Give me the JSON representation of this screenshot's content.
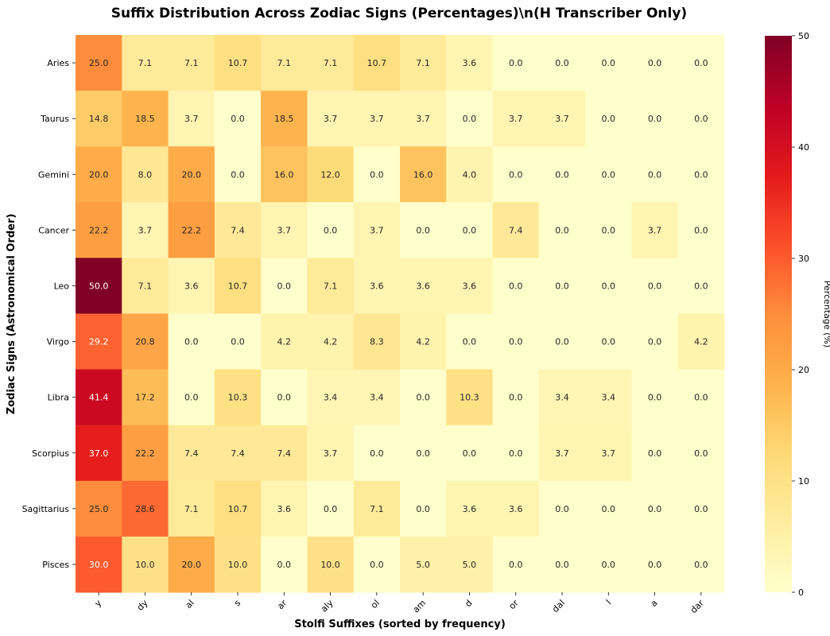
{
  "chart_data": {
    "type": "heatmap",
    "title": "Suffix Distribution Across Zodiac Signs (Percentages)\\n(H Transcriber Only)",
    "xlabel": "Stolfi Suffixes (sorted by frequency)",
    "ylabel": "Zodiac Signs (Astronomical Order)",
    "colorbar_label": "Percentage (%)",
    "colorbar_ticks": [
      0,
      10,
      20,
      30,
      40,
      50
    ],
    "vmin": 0,
    "vmax": 50,
    "colormap": "YlOrRd",
    "x_categories": [
      "y",
      "dy",
      "al",
      "s",
      "ar",
      "aly",
      "ol",
      "am",
      "d",
      "or",
      "dal",
      "l",
      "a",
      "dar"
    ],
    "y_categories": [
      "Aries",
      "Taurus",
      "Gemini",
      "Cancer",
      "Leo",
      "Virgo",
      "Libra",
      "Scorpius",
      "Sagittarius",
      "Pisces"
    ],
    "values": [
      [
        25.0,
        7.1,
        7.1,
        10.7,
        7.1,
        7.1,
        10.7,
        7.1,
        3.6,
        0.0,
        0.0,
        0.0,
        0.0,
        0.0
      ],
      [
        14.8,
        18.5,
        3.7,
        0.0,
        18.5,
        3.7,
        3.7,
        3.7,
        0.0,
        3.7,
        3.7,
        0.0,
        0.0,
        0.0
      ],
      [
        20.0,
        8.0,
        20.0,
        0.0,
        16.0,
        12.0,
        0.0,
        16.0,
        4.0,
        0.0,
        0.0,
        0.0,
        0.0,
        0.0
      ],
      [
        22.2,
        3.7,
        22.2,
        7.4,
        3.7,
        0.0,
        3.7,
        0.0,
        0.0,
        7.4,
        0.0,
        0.0,
        3.7,
        0.0
      ],
      [
        50.0,
        7.1,
        3.6,
        10.7,
        0.0,
        7.1,
        3.6,
        3.6,
        3.6,
        0.0,
        0.0,
        0.0,
        0.0,
        0.0
      ],
      [
        29.2,
        20.8,
        0.0,
        0.0,
        4.2,
        4.2,
        8.3,
        4.2,
        0.0,
        0.0,
        0.0,
        0.0,
        0.0,
        4.2
      ],
      [
        41.4,
        17.2,
        0.0,
        10.3,
        0.0,
        3.4,
        3.4,
        0.0,
        10.3,
        0.0,
        3.4,
        3.4,
        0.0,
        0.0
      ],
      [
        37.0,
        22.2,
        7.4,
        7.4,
        7.4,
        3.7,
        0.0,
        0.0,
        0.0,
        0.0,
        3.7,
        3.7,
        0.0,
        0.0
      ],
      [
        25.0,
        28.6,
        7.1,
        10.7,
        3.6,
        0.0,
        7.1,
        0.0,
        3.6,
        3.6,
        0.0,
        0.0,
        0.0,
        0.0
      ],
      [
        30.0,
        10.0,
        20.0,
        10.0,
        0.0,
        10.0,
        0.0,
        5.0,
        5.0,
        0.0,
        0.0,
        0.0,
        0.0,
        0.0
      ]
    ]
  }
}
